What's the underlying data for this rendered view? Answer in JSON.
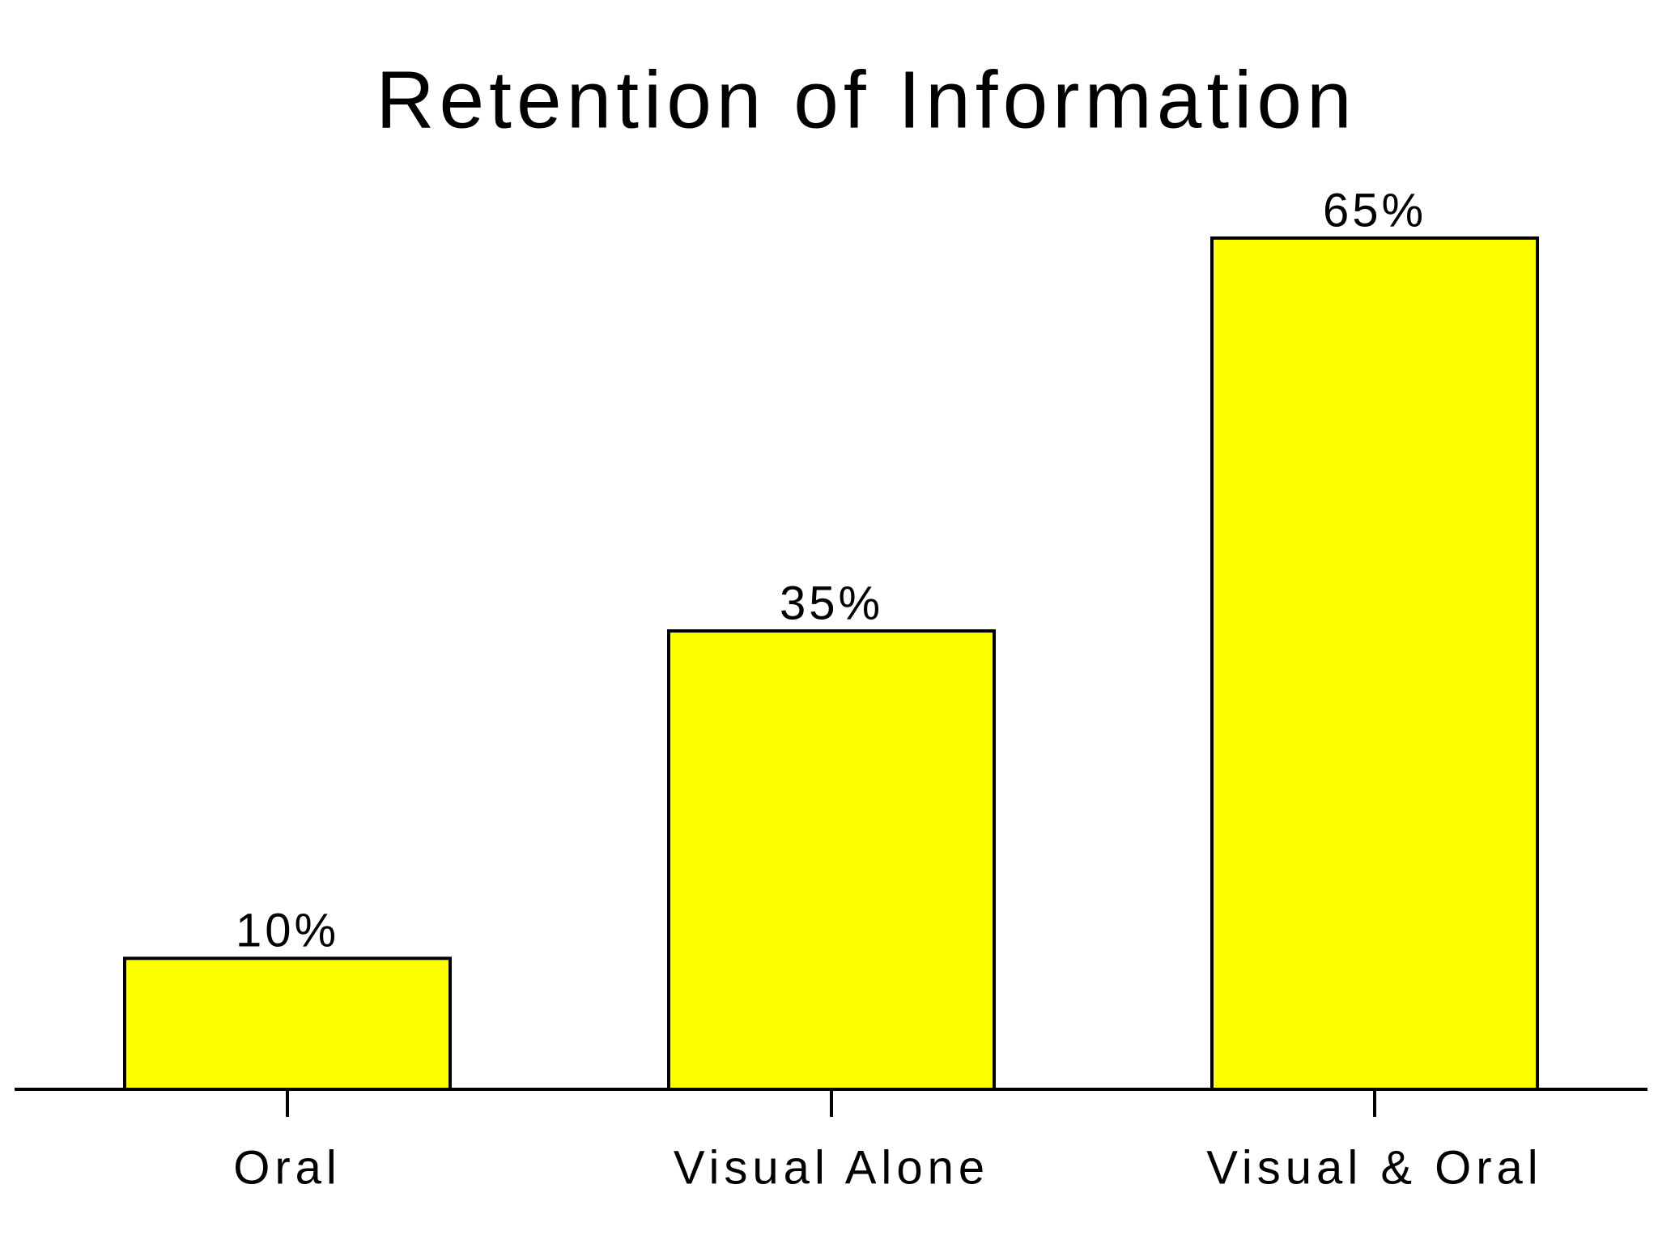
{
  "chart_data": {
    "type": "bar",
    "title": "Retention of Information",
    "categories": [
      "Oral",
      "Visual Alone",
      "Visual & Oral"
    ],
    "values": [
      10,
      35,
      65
    ],
    "value_labels": [
      "10%",
      "35%",
      "65%"
    ],
    "color": "#ffff00"
  }
}
